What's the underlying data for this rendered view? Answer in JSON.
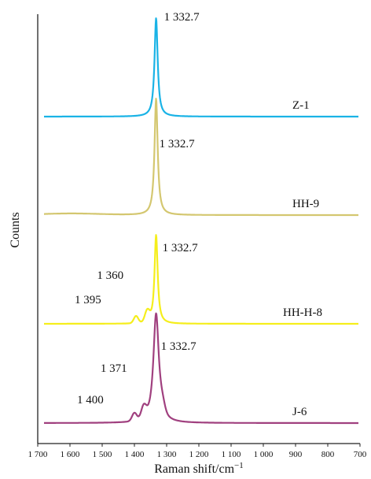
{
  "chart_data": {
    "type": "line",
    "xlabel": "Raman shift/cm",
    "xlabel_superscript": "−1",
    "ylabel": "Counts",
    "xlim": [
      1700,
      700
    ],
    "x_ticks": [
      1700,
      1600,
      1500,
      1400,
      1300,
      1200,
      1100,
      1000,
      900,
      800,
      700
    ],
    "x_tick_labels": [
      "1 700",
      "1 600",
      "1 500",
      "1 400",
      "1 300",
      "1 200",
      "1 100",
      "1 000",
      "900",
      "800",
      "700"
    ],
    "grid": false,
    "series": [
      {
        "name": "Z-1",
        "color": "#1ab3e6",
        "main_peak": 1332.7,
        "annotations": [
          {
            "text": "1 332.7",
            "x": 1332.7
          }
        ]
      },
      {
        "name": "HH-9",
        "color": "#d4c770",
        "main_peak": 1332.7,
        "annotations": [
          {
            "text": "1 332.7",
            "x": 1332.7
          }
        ]
      },
      {
        "name": "HH-H-8",
        "color": "#f5ee1c",
        "main_peak": 1332.7,
        "annotations": [
          {
            "text": "1 332.7",
            "x": 1332.7
          },
          {
            "text": "1 360",
            "x": 1360
          },
          {
            "text": "1 395",
            "x": 1395
          }
        ]
      },
      {
        "name": "J-6",
        "color": "#a0407f",
        "main_peak": 1332.7,
        "annotations": [
          {
            "text": "1 332.7",
            "x": 1332.7
          },
          {
            "text": "1 371",
            "x": 1371
          },
          {
            "text": "1 400",
            "x": 1400
          }
        ]
      }
    ]
  }
}
